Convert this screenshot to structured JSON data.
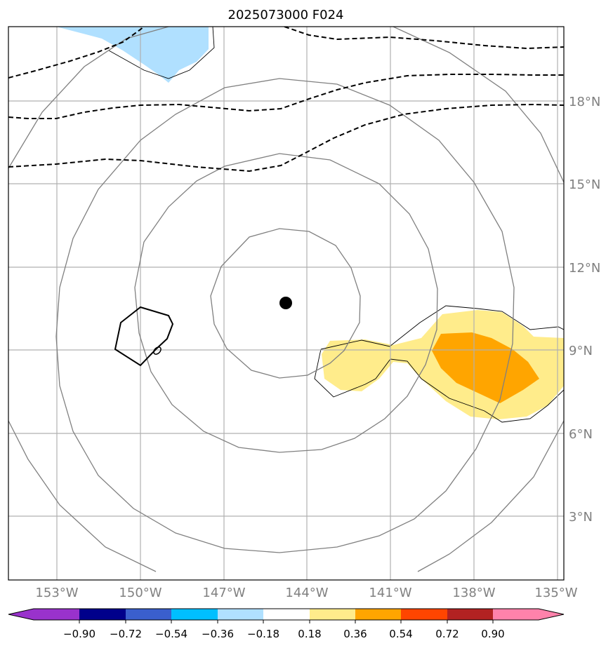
{
  "title": "2025073000 F024",
  "map": {
    "lon_range": [
      -155.2,
      -134.9
    ],
    "lat_range": [
      0.7,
      20.7
    ],
    "lon_ticks": [
      {
        "value": -153,
        "label": "153°W"
      },
      {
        "value": -150,
        "label": "150°W"
      },
      {
        "value": -147,
        "label": "147°W"
      },
      {
        "value": -144,
        "label": "144°W"
      },
      {
        "value": -141,
        "label": "141°W"
      },
      {
        "value": -138,
        "label": "138°W"
      },
      {
        "value": -135,
        "label": "135°W"
      }
    ],
    "lat_ticks": [
      {
        "value": 3,
        "label": "3°N"
      },
      {
        "value": 6,
        "label": "6°N"
      },
      {
        "value": 9,
        "label": "9°N"
      },
      {
        "value": 12,
        "label": "12°N"
      },
      {
        "value": 15,
        "label": "15°N"
      },
      {
        "value": 18,
        "label": "18°N"
      }
    ],
    "grid": true,
    "center_marker": {
      "lon": -144.2,
      "lat": 10.7
    }
  },
  "colorbar": {
    "orientation": "horizontal",
    "extend": "both",
    "colors": [
      "#9932cc",
      "#00008b",
      "#3a5fcd",
      "#00bfff",
      "#b0e0ff",
      "#ffffff",
      "#ffec8b",
      "#ffa500",
      "#ff4500",
      "#b22222",
      "#ff82ab"
    ],
    "tick_labels": [
      "−0.90",
      "−0.72",
      "−0.54",
      "−0.36",
      "−0.18",
      "0.18",
      "0.36",
      "0.54",
      "0.72",
      "0.90"
    ]
  },
  "colors": {
    "positive_light": "#ffec8b",
    "positive_mid": "#ffa500",
    "negative_light": "#b0e0ff",
    "circle_contours": "#808080",
    "dashed_contours": "#000000",
    "grid": "#b0b0b0"
  }
}
